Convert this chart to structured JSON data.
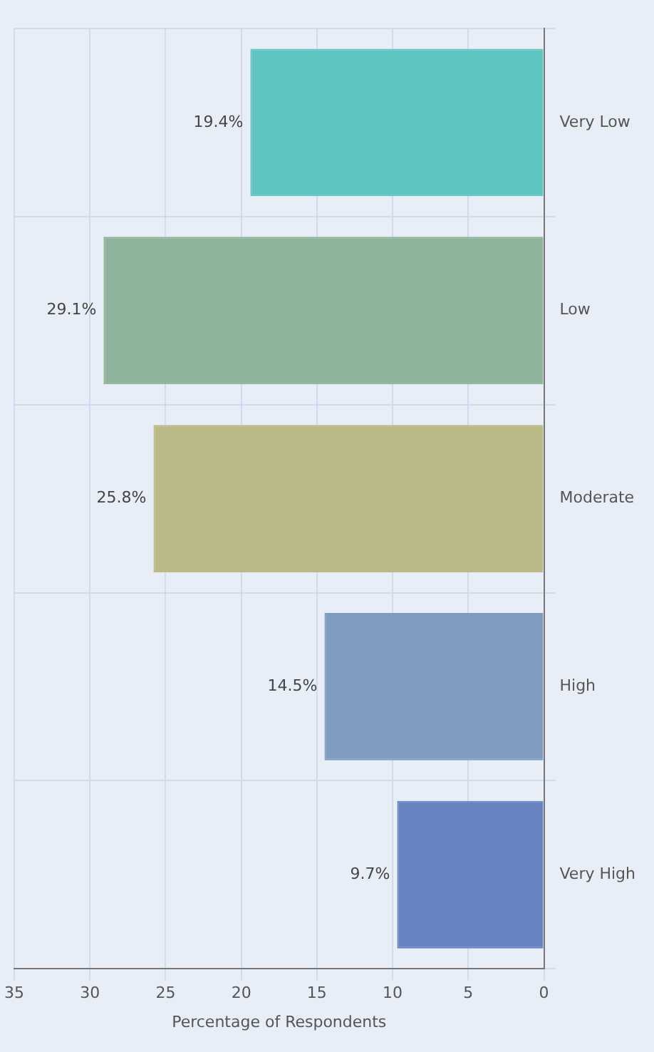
{
  "chart_data": {
    "type": "bar",
    "orientation": "horizontal",
    "xlabel": "Percentage of Respondents",
    "categories": [
      "Very Low",
      "Low",
      "Moderate",
      "High",
      "Very High"
    ],
    "values": [
      19.4,
      29.1,
      25.8,
      14.5,
      9.7
    ],
    "colors": [
      "#5fc4c0",
      "#8fb39a",
      "#bbb986",
      "#7f9cc0",
      "#6683c2"
    ],
    "value_labels": [
      "19.4%",
      "29.1%",
      "25.8%",
      "14.5%",
      "9.7%"
    ],
    "xlim": [
      35,
      0
    ],
    "xticks": [
      35,
      30,
      25,
      20,
      15,
      10,
      5,
      0
    ],
    "grid": true,
    "legend": false
  }
}
